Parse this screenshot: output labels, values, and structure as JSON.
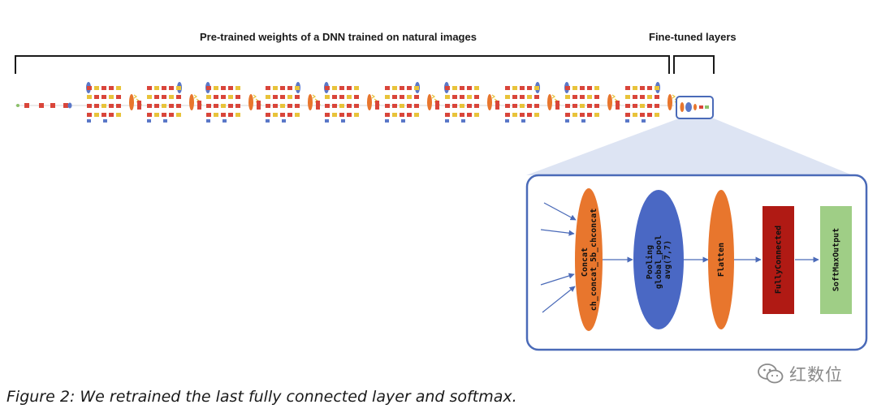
{
  "labels": {
    "pretrained": "Pre-trained weights of a DNN trained on natural images",
    "finetuned": "Fine-tuned layers"
  },
  "layers": [
    {
      "text": "Concat\nch_concat_5b_chconcat",
      "color": "#e8762d",
      "shape": "ellipse"
    },
    {
      "text": "Pooling\nglobal_pool\navg(7,7)",
      "color": "#4a68c4",
      "shape": "ellipse"
    },
    {
      "text": "Flatten",
      "color": "#e8762d",
      "shape": "ellipse"
    },
    {
      "text": "FullyConnected",
      "color": "#b01a14",
      "shape": "rect"
    },
    {
      "text": "SoftMaxOutput",
      "color": "#9fce86",
      "shape": "rect"
    }
  ],
  "caption": "Figure 2: We retrained the last fully connected layer and softmax.",
  "watermark": {
    "text": "红数位",
    "icon": "wechat-icon"
  },
  "colors": {
    "panel_border": "#4a6ab8",
    "zoom_fill": "#d9e1f2",
    "network_red": "#d9453a",
    "network_yellow": "#e8c33a",
    "network_orange": "#e8762d",
    "network_blue": "#5a78c8",
    "network_green": "#8cc06a"
  }
}
